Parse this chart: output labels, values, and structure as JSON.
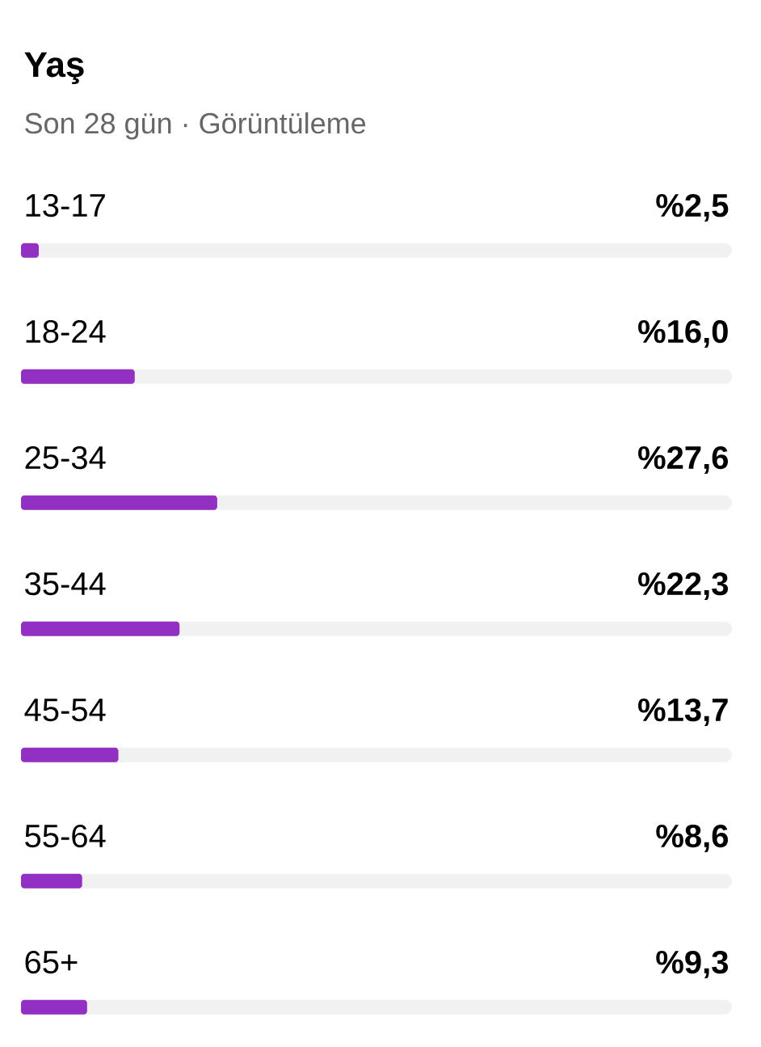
{
  "chart_data": {
    "type": "bar",
    "orientation": "horizontal",
    "title": "Yaş",
    "subtitle": "Son 28 gün · Görüntüleme",
    "categories": [
      "13-17",
      "18-24",
      "25-34",
      "35-44",
      "45-54",
      "55-64",
      "65+"
    ],
    "values": [
      2.5,
      16.0,
      27.6,
      22.3,
      13.7,
      8.6,
      9.3
    ],
    "value_labels": [
      "%2,5",
      "%16,0",
      "%27,6",
      "%22,3",
      "%13,7",
      "%8,6",
      "%9,3"
    ],
    "color": "#9130c2",
    "xlim": [
      0,
      100
    ]
  }
}
